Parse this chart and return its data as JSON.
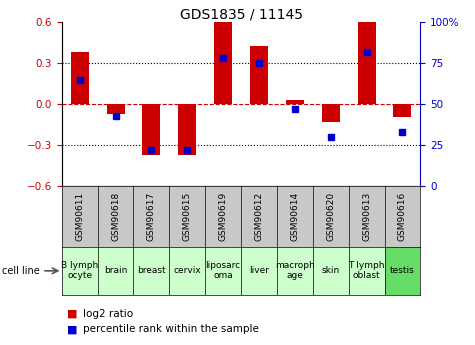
{
  "title": "GDS1835 / 11145",
  "samples": [
    "GSM90611",
    "GSM90618",
    "GSM90617",
    "GSM90615",
    "GSM90619",
    "GSM90612",
    "GSM90614",
    "GSM90620",
    "GSM90613",
    "GSM90616"
  ],
  "cell_lines": [
    "B lymph\nocyte",
    "brain",
    "breast",
    "cervix",
    "liposarc\noma",
    "liver",
    "macroph\nage",
    "skin",
    "T lymph\noblast",
    "testis"
  ],
  "cell_line_colors": [
    "#ccffcc",
    "#ccffcc",
    "#ccffcc",
    "#ccffcc",
    "#ccffcc",
    "#ccffcc",
    "#ccffcc",
    "#ccffcc",
    "#ccffcc",
    "#66dd66"
  ],
  "log2_ratio": [
    0.38,
    -0.07,
    -0.37,
    -0.37,
    0.6,
    0.43,
    0.03,
    -0.13,
    0.6,
    -0.09
  ],
  "percentile_rank": [
    65,
    43,
    22,
    22,
    78,
    75,
    47,
    30,
    82,
    33
  ],
  "red_color": "#cc0000",
  "blue_color": "#0000cc",
  "ylim_left": [
    -0.6,
    0.6
  ],
  "ylim_right": [
    0,
    100
  ],
  "yticks_left": [
    -0.6,
    -0.3,
    0.0,
    0.3,
    0.6
  ],
  "yticks_right": [
    0,
    25,
    50,
    75,
    100
  ],
  "ytick_labels_right": [
    "0",
    "25",
    "50",
    "75",
    "100%"
  ],
  "bar_width": 0.5,
  "title_fontsize": 10,
  "tick_fontsize": 7.5,
  "legend_fontsize": 7.5,
  "gsm_fontsize": 6.5,
  "cell_fontsize": 6.5
}
